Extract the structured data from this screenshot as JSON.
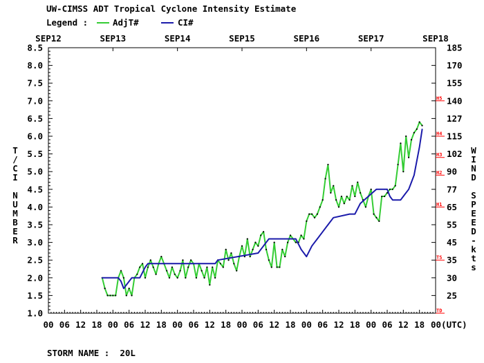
{
  "title": "UW-CIMSS ADT Tropical Cyclone Intensity Estimate",
  "legend": {
    "label": "Legend :",
    "items": [
      {
        "name": "AdjT#",
        "color": "#33cc33"
      },
      {
        "name": "CI#",
        "color": "#1a1aaa"
      }
    ]
  },
  "footer": "STORM NAME :  20L",
  "colors": {
    "axis_red": "#ff0000"
  },
  "chart_data": {
    "type": "line",
    "x_unit": "hours since SEP12 00 UTC",
    "xlim": [
      0,
      144
    ],
    "top_axis_dates": [
      "SEP12",
      "SEP13",
      "SEP14",
      "SEP15",
      "SEP16",
      "SEP17",
      "SEP18"
    ],
    "bottom_tick_labels": [
      "00",
      "06",
      "12",
      "18",
      "00",
      "06",
      "12",
      "18",
      "00",
      "06",
      "12",
      "18",
      "00",
      "06",
      "12",
      "18",
      "00",
      "06",
      "12",
      "18",
      "00",
      "06",
      "12",
      "18",
      "00(UTC)"
    ],
    "ylabel_left": "T/CI NUMBER",
    "ylim_left": [
      1.0,
      8.5
    ],
    "left_ticks": [
      "1.0",
      "1.5",
      "2.0",
      "2.5",
      "3.0",
      "3.5",
      "4.0",
      "4.5",
      "5.0",
      "5.5",
      "6.0",
      "6.5",
      "7.0",
      "7.5",
      "8.0",
      "8.5"
    ],
    "ylabel_right": "WIND SPEED-kts",
    "right_ticks": [
      {
        "t": 1.5,
        "label": "25"
      },
      {
        "t": 2.0,
        "label": "30"
      },
      {
        "t": 2.5,
        "label": "35"
      },
      {
        "t": 3.0,
        "label": "45"
      },
      {
        "t": 3.5,
        "label": "55"
      },
      {
        "t": 4.0,
        "label": "65"
      },
      {
        "t": 4.5,
        "label": "77"
      },
      {
        "t": 5.0,
        "label": "90"
      },
      {
        "t": 5.5,
        "label": "102"
      },
      {
        "t": 6.0,
        "label": "115"
      },
      {
        "t": 6.5,
        "label": "127"
      },
      {
        "t": 7.0,
        "label": "140"
      },
      {
        "t": 7.5,
        "label": "155"
      },
      {
        "t": 8.0,
        "label": "170"
      },
      {
        "t": 8.5,
        "label": "185"
      }
    ],
    "category_marks": [
      {
        "t": 1.0,
        "label": "TD"
      },
      {
        "t": 2.5,
        "label": "TS"
      },
      {
        "t": 4.0,
        "label": "H1"
      },
      {
        "t": 4.9,
        "label": "H2"
      },
      {
        "t": 5.4,
        "label": "H3"
      },
      {
        "t": 6.0,
        "label": "H4"
      },
      {
        "t": 7.0,
        "label": "H5"
      }
    ],
    "grid": false,
    "legend_position": "top-left",
    "series": [
      {
        "name": "AdjT#",
        "color": "#33cc33",
        "x": [
          20,
          21,
          22,
          23,
          24,
          25,
          26,
          27,
          28,
          29,
          30,
          31,
          32,
          33,
          34,
          35,
          36,
          37,
          38,
          39,
          40,
          41,
          42,
          43,
          44,
          45,
          46,
          47,
          48,
          49,
          50,
          51,
          52,
          53,
          54,
          55,
          56,
          57,
          58,
          59,
          60,
          61,
          62,
          63,
          64,
          65,
          66,
          67,
          68,
          69,
          70,
          71,
          72,
          73,
          74,
          75,
          76,
          77,
          78,
          79,
          80,
          81,
          82,
          83,
          84,
          85,
          86,
          87,
          88,
          89,
          90,
          91,
          92,
          93,
          94,
          95,
          96,
          97,
          98,
          99,
          100,
          101,
          102,
          103,
          104,
          105,
          106,
          107,
          108,
          109,
          110,
          111,
          112,
          113,
          114,
          115,
          116,
          117,
          118,
          119,
          120,
          121,
          122,
          123,
          124,
          125,
          126,
          127,
          128,
          129,
          130,
          131,
          132,
          133,
          134,
          135,
          136,
          137,
          138,
          139
        ],
        "values": [
          2.0,
          1.7,
          1.5,
          1.5,
          1.5,
          1.5,
          2.0,
          2.2,
          2.0,
          1.5,
          1.7,
          1.5,
          2.0,
          2.1,
          2.3,
          2.4,
          2.0,
          2.3,
          2.5,
          2.3,
          2.1,
          2.4,
          2.6,
          2.4,
          2.2,
          2.0,
          2.3,
          2.1,
          2.0,
          2.2,
          2.5,
          2.0,
          2.3,
          2.5,
          2.4,
          2.0,
          2.4,
          2.2,
          2.0,
          2.3,
          1.8,
          2.3,
          2.0,
          2.5,
          2.4,
          2.3,
          2.8,
          2.5,
          2.7,
          2.4,
          2.2,
          2.6,
          2.9,
          2.6,
          3.1,
          2.6,
          2.8,
          3.0,
          2.9,
          3.2,
          3.3,
          2.8,
          2.5,
          2.3,
          3.0,
          2.3,
          2.3,
          2.8,
          2.6,
          3.0,
          3.2,
          3.1,
          3.0,
          3.0,
          3.2,
          3.1,
          3.6,
          3.8,
          3.8,
          3.7,
          3.8,
          4.0,
          4.2,
          4.8,
          5.2,
          4.4,
          4.6,
          4.2,
          4.0,
          4.3,
          4.1,
          4.3,
          4.2,
          4.6,
          4.3,
          4.7,
          4.4,
          4.2,
          4.0,
          4.3,
          4.5,
          3.8,
          3.7,
          3.6,
          4.3,
          4.3,
          4.4,
          4.5,
          4.5,
          4.6,
          5.2,
          5.8,
          5.0,
          6.0,
          5.4,
          5.9,
          6.1,
          6.2,
          6.4,
          6.3
        ]
      },
      {
        "name": "CI#",
        "color": "#1a1aaa",
        "x": [
          20,
          26,
          27,
          28,
          29,
          31,
          32,
          34,
          36,
          37,
          52,
          53,
          62,
          63,
          78,
          79,
          80,
          82,
          84,
          86,
          88,
          90,
          92,
          94,
          96,
          98,
          100,
          102,
          104,
          106,
          112,
          114,
          116,
          122,
          125,
          126,
          127,
          128,
          129,
          130,
          131,
          132,
          133,
          134,
          135,
          136,
          137,
          138,
          139
        ],
        "values": [
          2.0,
          2.0,
          1.9,
          1.7,
          1.8,
          2.0,
          2.0,
          2.0,
          2.3,
          2.4,
          2.4,
          2.4,
          2.4,
          2.5,
          2.7,
          2.8,
          2.9,
          3.1,
          3.1,
          3.1,
          3.1,
          3.1,
          3.1,
          2.8,
          2.6,
          2.9,
          3.1,
          3.3,
          3.5,
          3.7,
          3.8,
          3.8,
          4.1,
          4.5,
          4.5,
          4.5,
          4.3,
          4.2,
          4.2,
          4.2,
          4.2,
          4.3,
          4.4,
          4.5,
          4.7,
          4.9,
          5.3,
          5.7,
          6.2
        ]
      }
    ]
  }
}
